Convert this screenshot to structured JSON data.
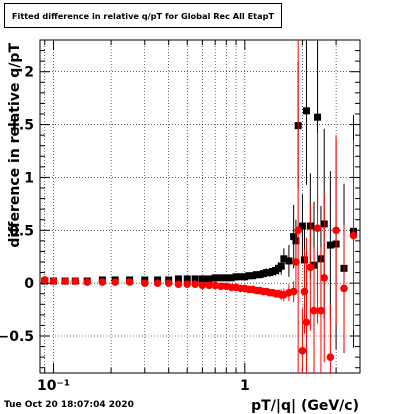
{
  "chart_data": {
    "type": "scatter",
    "title": "Fitted difference in relative q/pT for Global Rec All EtapT",
    "xlabel": "pT/|q| (GeV/c)",
    "ylabel": "difference in relative q/pT",
    "xscale": "log",
    "xlim": [
      0.085,
      4.0
    ],
    "ylim": [
      -0.85,
      2.3
    ],
    "x_tick_labels": [
      {
        "value": 0.1,
        "label": "10⁻¹"
      },
      {
        "value": 1,
        "label": "1"
      }
    ],
    "y_tick_labels": [
      -0.5,
      0,
      0.5,
      1,
      1.5,
      2
    ],
    "grid": true,
    "footer": "Tue Oct 20 18:07:04 2020",
    "series": [
      {
        "color": "#000000",
        "x": [
          0.09,
          0.1,
          0.115,
          0.13,
          0.15,
          0.18,
          0.21,
          0.25,
          0.3,
          0.35,
          0.4,
          0.45,
          0.5,
          0.55,
          0.6,
          0.65,
          0.7,
          0.75,
          0.8,
          0.85,
          0.9,
          0.95,
          1.0,
          1.05,
          1.1,
          1.15,
          1.2,
          1.25,
          1.3,
          1.35,
          1.4,
          1.45,
          1.5,
          1.55,
          1.6,
          1.7,
          1.8,
          1.85,
          1.9,
          2.0,
          2.05,
          2.1,
          2.2,
          2.3,
          2.4,
          2.5,
          2.6,
          2.8,
          3.0,
          3.3,
          3.7
        ],
        "y": [
          0.02,
          0.02,
          0.02,
          0.02,
          0.02,
          0.03,
          0.03,
          0.03,
          0.03,
          0.03,
          0.03,
          0.04,
          0.04,
          0.04,
          0.04,
          0.04,
          0.05,
          0.05,
          0.05,
          0.05,
          0.06,
          0.06,
          0.06,
          0.07,
          0.07,
          0.08,
          0.08,
          0.09,
          0.1,
          0.1,
          0.11,
          0.12,
          0.14,
          0.16,
          0.23,
          0.21,
          0.44,
          0.4,
          1.49,
          0.54,
          0.22,
          1.63,
          0.54,
          0.17,
          1.57,
          0.23,
          0.56,
          0.36,
          0.37,
          0.14,
          0.49
        ],
        "err": [
          0.01,
          0.01,
          0.01,
          0.01,
          0.01,
          0.01,
          0.01,
          0.01,
          0.01,
          0.01,
          0.01,
          0.01,
          0.01,
          0.01,
          0.01,
          0.01,
          0.01,
          0.01,
          0.01,
          0.01,
          0.02,
          0.02,
          0.02,
          0.02,
          0.02,
          0.03,
          0.03,
          0.03,
          0.04,
          0.04,
          0.04,
          0.05,
          0.06,
          0.08,
          0.1,
          0.15,
          0.3,
          0.2,
          0.6,
          0.3,
          0.3,
          0.7,
          0.5,
          0.6,
          0.9,
          0.5,
          0.9,
          0.7,
          1.0,
          0.8,
          1.1
        ]
      },
      {
        "color": "#ff0000",
        "x": [
          0.09,
          0.1,
          0.115,
          0.13,
          0.15,
          0.18,
          0.21,
          0.25,
          0.3,
          0.35,
          0.4,
          0.45,
          0.5,
          0.55,
          0.6,
          0.65,
          0.7,
          0.75,
          0.8,
          0.85,
          0.9,
          0.95,
          1.0,
          1.05,
          1.1,
          1.15,
          1.2,
          1.25,
          1.3,
          1.35,
          1.4,
          1.45,
          1.5,
          1.55,
          1.6,
          1.7,
          1.8,
          1.85,
          1.9,
          2.0,
          2.05,
          2.1,
          2.2,
          2.3,
          2.4,
          2.5,
          2.6,
          2.8,
          3.0,
          3.3,
          3.7
        ],
        "y": [
          0.03,
          0.02,
          0.02,
          0.02,
          0.01,
          0.01,
          0.01,
          0.01,
          0.0,
          0.0,
          0.0,
          -0.01,
          -0.01,
          -0.01,
          -0.02,
          -0.02,
          -0.02,
          -0.03,
          -0.03,
          -0.04,
          -0.04,
          -0.05,
          -0.05,
          -0.06,
          -0.06,
          -0.07,
          -0.07,
          -0.08,
          -0.08,
          -0.09,
          -0.09,
          -0.1,
          -0.1,
          -0.11,
          -0.11,
          -0.09,
          -0.08,
          0.2,
          0.5,
          -0.64,
          -0.08,
          -0.37,
          0.15,
          -0.26,
          0.52,
          -0.26,
          0.05,
          -0.7,
          0.5,
          -0.05,
          0.45
        ],
        "err": [
          0.01,
          0.01,
          0.01,
          0.01,
          0.01,
          0.01,
          0.01,
          0.01,
          0.01,
          0.01,
          0.01,
          0.01,
          0.01,
          0.01,
          0.01,
          0.01,
          0.01,
          0.01,
          0.01,
          0.01,
          0.01,
          0.01,
          0.01,
          0.02,
          0.02,
          0.02,
          0.02,
          0.02,
          0.03,
          0.03,
          0.03,
          0.04,
          0.04,
          0.05,
          0.06,
          0.08,
          0.1,
          0.3,
          1.8,
          0.4,
          0.4,
          0.8,
          0.6,
          0.6,
          0.9,
          0.6,
          0.8,
          0.5,
          0.9,
          0.6,
          0.9
        ]
      }
    ]
  }
}
